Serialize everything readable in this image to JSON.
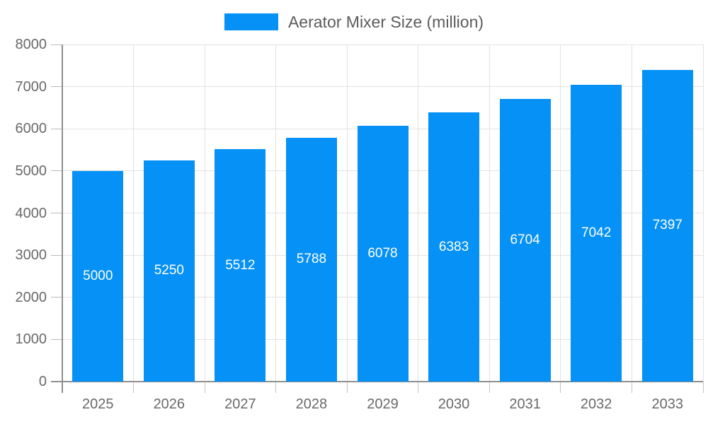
{
  "legend": {
    "label": "Aerator Mixer Size (million)"
  },
  "colors": {
    "bar": "#0591f5",
    "grid_line": "#e2e2e2",
    "axis_line": "#8f8f8f",
    "axis_label": "#696969",
    "legend_label": "#5c5c5c",
    "value_label": "#ffffff",
    "background": "#ffffff"
  },
  "chart_data": {
    "type": "bar",
    "title": "Aerator Mixer Size (million)",
    "categories": [
      "2025",
      "2026",
      "2027",
      "2028",
      "2029",
      "2030",
      "2031",
      "2032",
      "2033"
    ],
    "series": [
      {
        "name": "Aerator Mixer Size (million)",
        "values": [
          5000,
          5250,
          5512,
          5788,
          6078,
          6383,
          6704,
          7042,
          7397
        ]
      }
    ],
    "xlabel": "",
    "ylabel": "",
    "ylim": [
      0,
      8000
    ],
    "yticks": [
      0,
      1000,
      2000,
      3000,
      4000,
      5000,
      6000,
      7000,
      8000
    ],
    "grid": true,
    "legend_position": "top-center",
    "value_label_position": "inside-middle"
  }
}
